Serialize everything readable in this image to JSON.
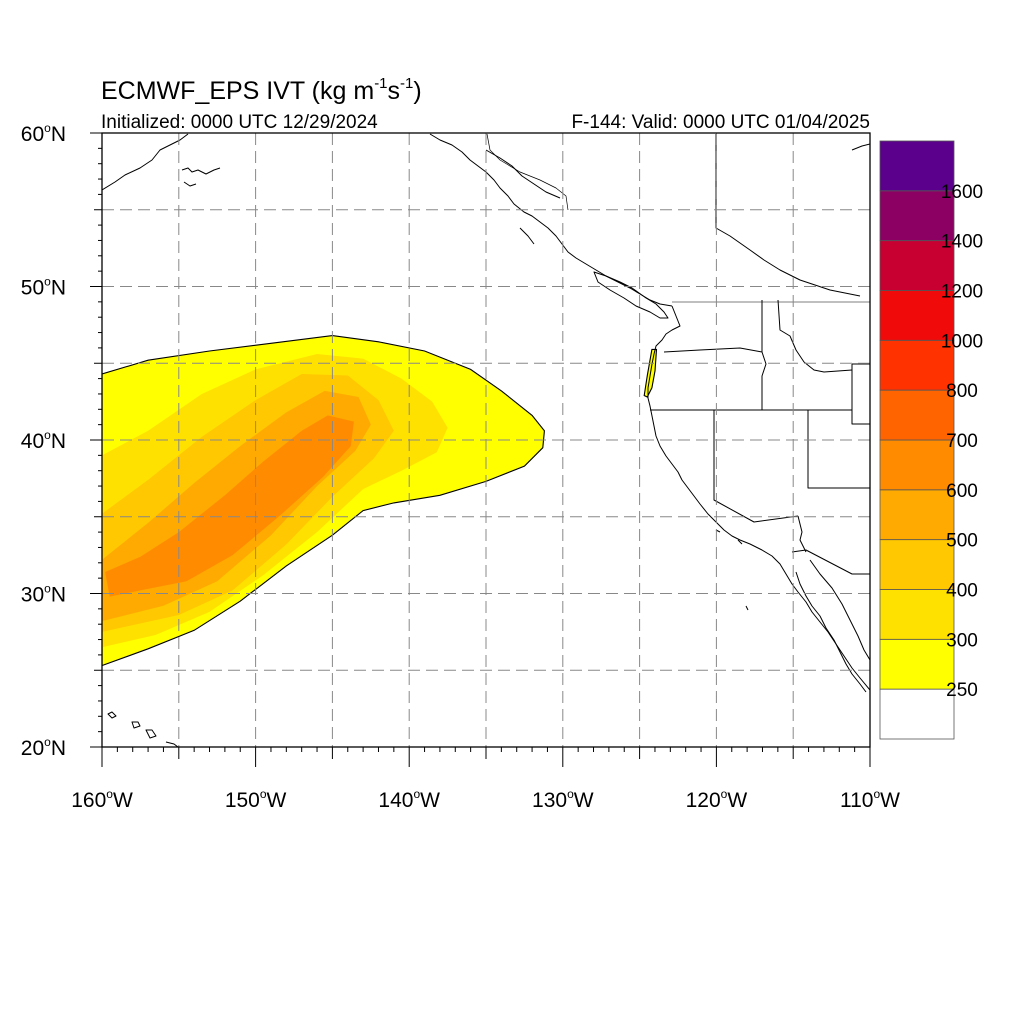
{
  "title": {
    "main": "ECMWF_EPS IVT (kg m",
    "exp1": "-1",
    "mid": "s",
    "exp2": "-1",
    "close": ")"
  },
  "subtitle_left": "Initialized: 0000 UTC 12/29/2024",
  "subtitle_right": "F-144: Valid: 0000 UTC 01/04/2025",
  "map": {
    "lon_range": [
      -160,
      -110
    ],
    "lat_range": [
      20,
      60
    ],
    "lat_labels": [
      {
        "lat": 60,
        "num": "60",
        "hemi": "N"
      },
      {
        "lat": 50,
        "num": "50",
        "hemi": "N"
      },
      {
        "lat": 40,
        "num": "40",
        "hemi": "N"
      },
      {
        "lat": 30,
        "num": "30",
        "hemi": "N"
      },
      {
        "lat": 20,
        "num": "20",
        "hemi": "N"
      }
    ],
    "lon_labels": [
      {
        "lon": -160,
        "num": "160",
        "hemi": "W"
      },
      {
        "lon": -150,
        "num": "150",
        "hemi": "W"
      },
      {
        "lon": -140,
        "num": "140",
        "hemi": "W"
      },
      {
        "lon": -130,
        "num": "130",
        "hemi": "W"
      },
      {
        "lon": -120,
        "num": "120",
        "hemi": "W"
      },
      {
        "lon": -110,
        "num": "110",
        "hemi": "W"
      }
    ],
    "grid_lats": [
      25,
      30,
      35,
      40,
      45,
      50,
      55
    ],
    "grid_lons": [
      -155,
      -150,
      -145,
      -140,
      -135,
      -130,
      -125,
      -120,
      -115
    ]
  },
  "colorbar": {
    "levels": [
      "250",
      "300",
      "400",
      "500",
      "600",
      "700",
      "800",
      "1000",
      "1200",
      "1400",
      "1600"
    ],
    "colors": [
      "#ffffff",
      "#ffff00",
      "#ffe100",
      "#ffc800",
      "#ffaa00",
      "#ff8c00",
      "#ff6400",
      "#ff3200",
      "#f00a0a",
      "#c80032",
      "#8c0064",
      "#5a008c"
    ]
  },
  "ivt_field": {
    "contours": [
      {
        "level": 250,
        "color": "#ffff00",
        "polygon": [
          [
            -160,
            44.3
          ],
          [
            -157,
            45.2
          ],
          [
            -153,
            45.8
          ],
          [
            -149,
            46.3
          ],
          [
            -145,
            46.8
          ],
          [
            -142,
            46.4
          ],
          [
            -139,
            45.8
          ],
          [
            -136,
            44.6
          ],
          [
            -134,
            43.2
          ],
          [
            -132,
            41.6
          ],
          [
            -131.2,
            40.6
          ],
          [
            -131.3,
            39.5
          ],
          [
            -132.5,
            38.3
          ],
          [
            -135,
            37.3
          ],
          [
            -138,
            36.4
          ],
          [
            -141,
            35.9
          ],
          [
            -143,
            35.4
          ],
          [
            -145,
            33.8
          ],
          [
            -148,
            31.8
          ],
          [
            -151,
            29.5
          ],
          [
            -154,
            27.6
          ],
          [
            -157,
            26.4
          ],
          [
            -160,
            25.3
          ]
        ]
      },
      {
        "level": 300,
        "color": "#ffe100",
        "polygon": [
          [
            -160,
            39
          ],
          [
            -157,
            40.6
          ],
          [
            -153.5,
            43
          ],
          [
            -150,
            44.6
          ],
          [
            -146,
            45.6
          ],
          [
            -143,
            45.3
          ],
          [
            -140.5,
            44
          ],
          [
            -138.5,
            42.5
          ],
          [
            -137.5,
            40.8
          ],
          [
            -138.2,
            39.2
          ],
          [
            -140.5,
            38
          ],
          [
            -143,
            36.8
          ],
          [
            -146,
            34
          ],
          [
            -149.5,
            31.2
          ],
          [
            -153,
            28.8
          ],
          [
            -156.5,
            27.3
          ],
          [
            -160,
            26.5
          ]
        ]
      },
      {
        "level": 400,
        "color": "#ffc800",
        "polygon": [
          [
            -160,
            35.2
          ],
          [
            -157,
            37.4
          ],
          [
            -153.5,
            40.2
          ],
          [
            -150,
            42.6
          ],
          [
            -147,
            44.3
          ],
          [
            -144,
            44.2
          ],
          [
            -142,
            42.6
          ],
          [
            -141,
            40.6
          ],
          [
            -142.3,
            38.8
          ],
          [
            -145,
            36.3
          ],
          [
            -148,
            33.2
          ],
          [
            -151.5,
            30.2
          ],
          [
            -155,
            28.6
          ],
          [
            -160,
            27.5
          ]
        ]
      },
      {
        "level": 500,
        "color": "#ffaa00",
        "polygon": [
          [
            -160,
            32.2
          ],
          [
            -157,
            34.6
          ],
          [
            -154,
            37.2
          ],
          [
            -151,
            39.6
          ],
          [
            -148,
            41.8
          ],
          [
            -145.5,
            43.2
          ],
          [
            -143.3,
            42.8
          ],
          [
            -142.5,
            41
          ],
          [
            -143.5,
            39.3
          ],
          [
            -146,
            37
          ],
          [
            -149,
            33.8
          ],
          [
            -152.5,
            30.8
          ],
          [
            -156,
            29.2
          ],
          [
            -160,
            28.2
          ]
        ]
      },
      {
        "level": 600,
        "color": "#ff8c00",
        "polygon": [
          [
            -159.8,
            31.4
          ],
          [
            -157.5,
            32.4
          ],
          [
            -155,
            34
          ],
          [
            -152,
            36.4
          ],
          [
            -149.5,
            38.6
          ],
          [
            -147,
            40.6
          ],
          [
            -145.3,
            41.6
          ],
          [
            -143.6,
            41.2
          ],
          [
            -143.8,
            39.6
          ],
          [
            -145.6,
            37.6
          ],
          [
            -148.5,
            35
          ],
          [
            -151.5,
            32.5
          ],
          [
            -154.5,
            30.8
          ],
          [
            -157.5,
            30.2
          ],
          [
            -159.5,
            29.8
          ]
        ]
      },
      {
        "level": 250,
        "color": "#ffff00",
        "polygon": [
          [
            -124.2,
            45.9
          ],
          [
            -123.9,
            45.9
          ],
          [
            -124.0,
            44.5
          ],
          [
            -124.2,
            43.4
          ],
          [
            -124.5,
            42.8
          ],
          [
            -124.7,
            42.9
          ],
          [
            -124.5,
            44.2
          ]
        ]
      }
    ]
  }
}
